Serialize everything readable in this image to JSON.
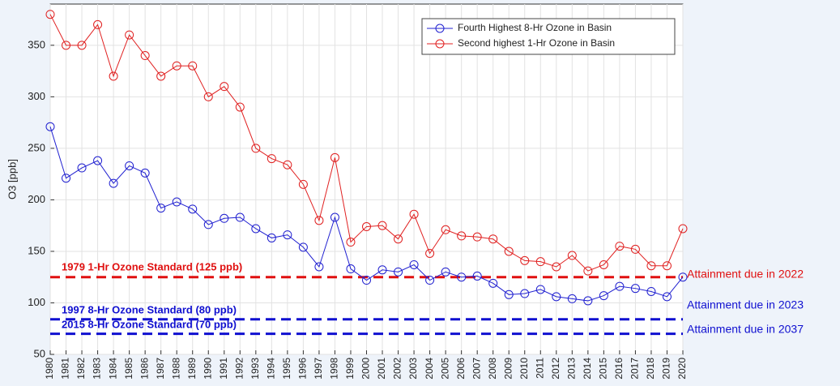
{
  "chart_data": {
    "type": "line",
    "ylabel": "O3 [ppb]",
    "x": [
      1980,
      1981,
      1982,
      1983,
      1984,
      1985,
      1986,
      1987,
      1988,
      1989,
      1990,
      1991,
      1992,
      1993,
      1994,
      1995,
      1996,
      1997,
      1998,
      1999,
      2000,
      2001,
      2002,
      2003,
      2004,
      2005,
      2006,
      2007,
      2008,
      2009,
      2010,
      2011,
      2012,
      2013,
      2014,
      2015,
      2016,
      2017,
      2018,
      2019,
      2020
    ],
    "xlim": [
      1980,
      2020
    ],
    "xticks": [
      1980,
      1981,
      1982,
      1983,
      1984,
      1985,
      1986,
      1987,
      1988,
      1989,
      1990,
      1991,
      1992,
      1993,
      1994,
      1995,
      1996,
      1997,
      1998,
      1999,
      2000,
      2001,
      2002,
      2003,
      2004,
      2005,
      2006,
      2007,
      2008,
      2009,
      2010,
      2011,
      2012,
      2013,
      2014,
      2015,
      2016,
      2017,
      2018,
      2019,
      2020
    ],
    "ylim": [
      50,
      390
    ],
    "yticks": [
      50,
      100,
      150,
      200,
      250,
      300,
      350
    ],
    "grid": true,
    "legend": "upper right",
    "series": [
      {
        "name": "Fourth Highest 8-Hr Ozone in Basin",
        "color": "#2020d0",
        "values": [
          271,
          221,
          231,
          238,
          216,
          233,
          226,
          192,
          198,
          191,
          176,
          182,
          183,
          172,
          163,
          166,
          154,
          135,
          183,
          133,
          122,
          132,
          130,
          137,
          122,
          130,
          125,
          126,
          119,
          108,
          109,
          113,
          106,
          104,
          102,
          107,
          116,
          114,
          111,
          106,
          125
        ]
      },
      {
        "name": "Second highest 1-Hr Ozone in Basin",
        "color": "#e02020",
        "values": [
          380,
          350,
          350,
          370,
          320,
          360,
          340,
          320,
          330,
          330,
          300,
          310,
          290,
          250,
          240,
          234,
          215,
          180,
          241,
          159,
          174,
          175,
          162,
          186,
          148,
          171,
          165,
          164,
          162,
          150,
          141,
          140,
          135,
          146,
          131,
          137,
          155,
          152,
          136,
          136,
          172
        ]
      }
    ],
    "reference_lines": [
      {
        "value": 125,
        "label": "1979 1-Hr Ozone Standard (125 ppb)",
        "annotation": "Attainment due in 2022",
        "color": "#e01010"
      },
      {
        "value": 84,
        "label": "1997 8-Hr Ozone Standard (80 ppb)",
        "annotation": "Attainment due in 2023",
        "color": "#1010d0"
      },
      {
        "value": 70,
        "label": "2015 8-Hr Ozone Standard (70 ppb)",
        "annotation": "Attainment due in 2037",
        "color": "#1010d0"
      }
    ]
  }
}
